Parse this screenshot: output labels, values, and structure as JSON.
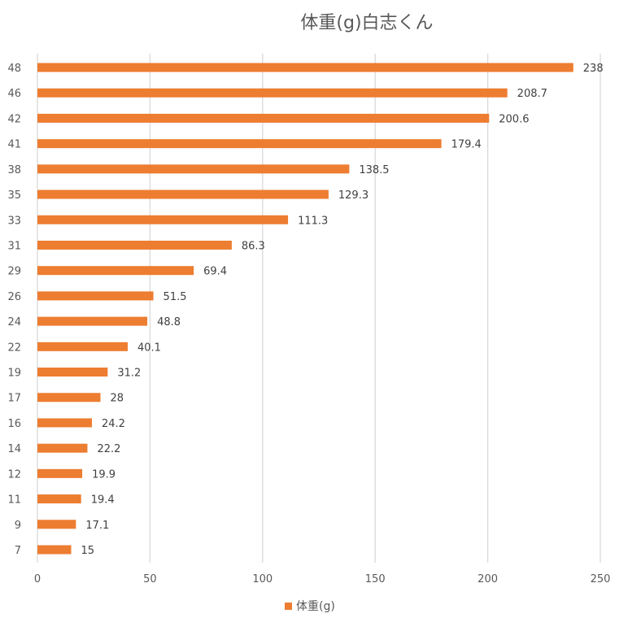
{
  "chart_data": {
    "type": "bar",
    "orientation": "horizontal",
    "title": "体重(g)白志くん",
    "categories": [
      "48",
      "46",
      "42",
      "41",
      "38",
      "35",
      "33",
      "31",
      "29",
      "26",
      "24",
      "22",
      "19",
      "17",
      "16",
      "14",
      "12",
      "11",
      "9",
      "7"
    ],
    "series": [
      {
        "name": "体重(g)",
        "color": "#ED7D31",
        "values": [
          238,
          208.7,
          200.6,
          179.4,
          138.5,
          129.3,
          111.3,
          86.3,
          69.4,
          51.5,
          48.8,
          40.1,
          31.2,
          28,
          24.2,
          22.2,
          19.9,
          19.4,
          17.1,
          15
        ]
      }
    ],
    "xticks": [
      "0",
      "50",
      "100",
      "150",
      "200",
      "250"
    ],
    "xlim": [
      0,
      250
    ],
    "grid": true,
    "legend_position": "bottom",
    "data_labels": true
  }
}
